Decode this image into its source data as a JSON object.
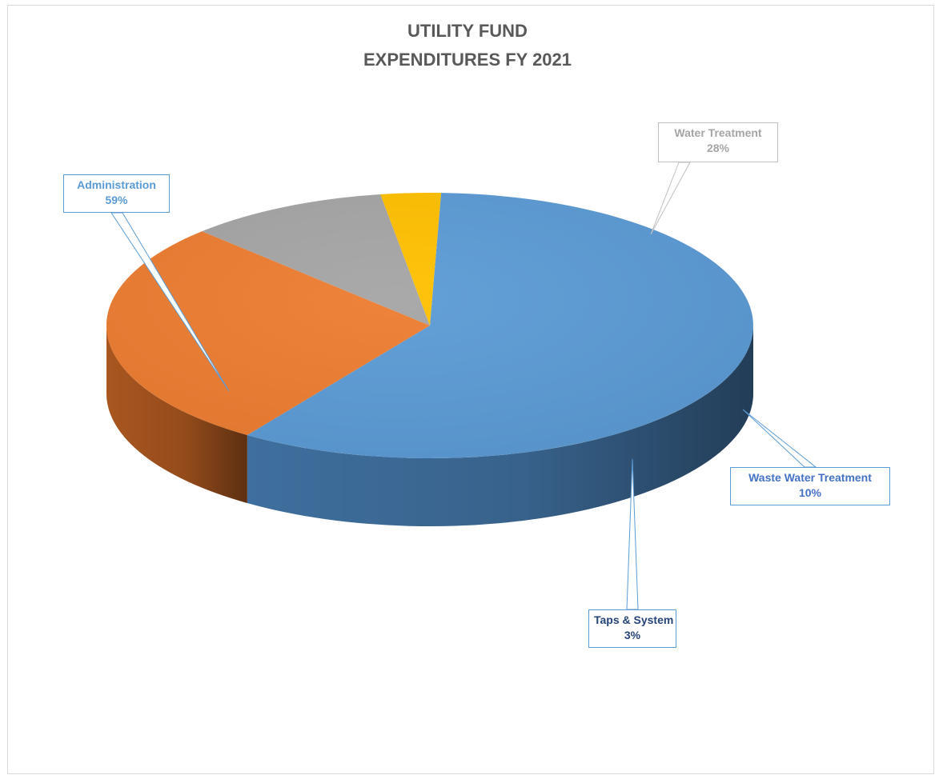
{
  "chart_data": {
    "type": "pie",
    "title": "UTILITY FUND",
    "subtitle": "EXPENDITURES FY 2021",
    "slices": [
      {
        "label": "Administration",
        "percent_label": "59%",
        "value": 59,
        "color": "#5b9bd5",
        "side_color": "#3f6f9e",
        "text_color": "#5b9bd5",
        "border_color": "#5b9bd5"
      },
      {
        "label": "Water Treatment",
        "percent_label": "28%",
        "value": 28,
        "color": "#ed7d31",
        "side_color": "#a9561f",
        "text_color": "#a5a5a5",
        "border_color": "#bfbfbf"
      },
      {
        "label": "Waste Water Treatment",
        "percent_label": "10%",
        "value": 10,
        "color": "#a5a5a5",
        "side_color": "#3f3f3f",
        "text_color": "#4472c4",
        "border_color": "#5b9bd5"
      },
      {
        "label": "Taps & System",
        "percent_label": "3%",
        "value": 3,
        "color": "#ffc000",
        "side_color": "#6b5100",
        "text_color": "#264478",
        "border_color": "#5b9bd5"
      }
    ],
    "style": "3d-pie",
    "legend": "none",
    "data_labels": "callouts"
  }
}
